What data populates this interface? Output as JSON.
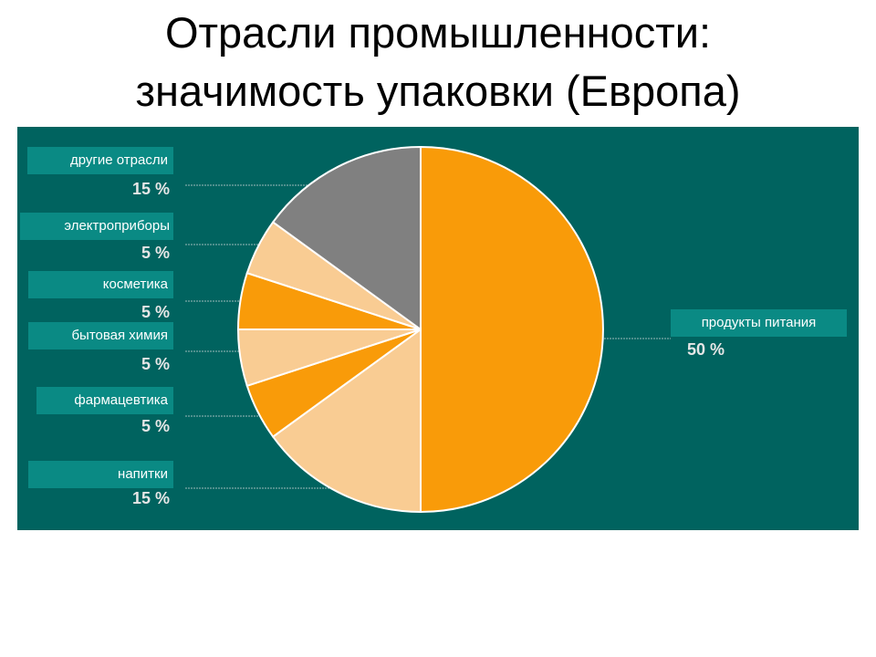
{
  "page": {
    "title_line1": "Отрасли промышленности:",
    "title_line2": "значимость упаковки (Европа)"
  },
  "chart_data": {
    "type": "pie",
    "title": "",
    "slices": [
      {
        "label": "продукты питания",
        "value": 50,
        "display": "50 %",
        "color": "#f99b09"
      },
      {
        "label": "напитки",
        "value": 15,
        "display": "15 %",
        "color": "#f9cc93"
      },
      {
        "label": "фармацевтика",
        "value": 5,
        "display": "5 %",
        "color": "#f99b09"
      },
      {
        "label": "бытовая химия",
        "value": 5,
        "display": "5 %",
        "color": "#f9cc93"
      },
      {
        "label": "косметика",
        "value": 5,
        "display": "5 %",
        "color": "#f99b09"
      },
      {
        "label": "электроприборы",
        "value": 5,
        "display": "5 %",
        "color": "#f9cc93"
      },
      {
        "label": "другие отрасли",
        "value": 15,
        "display": "15 %",
        "color": "#808080"
      }
    ],
    "colors": {
      "panel_background": "#00635f",
      "label_box": "#0a8a84",
      "slice_border": "#ffffff"
    },
    "legend": "labels beside slices"
  }
}
